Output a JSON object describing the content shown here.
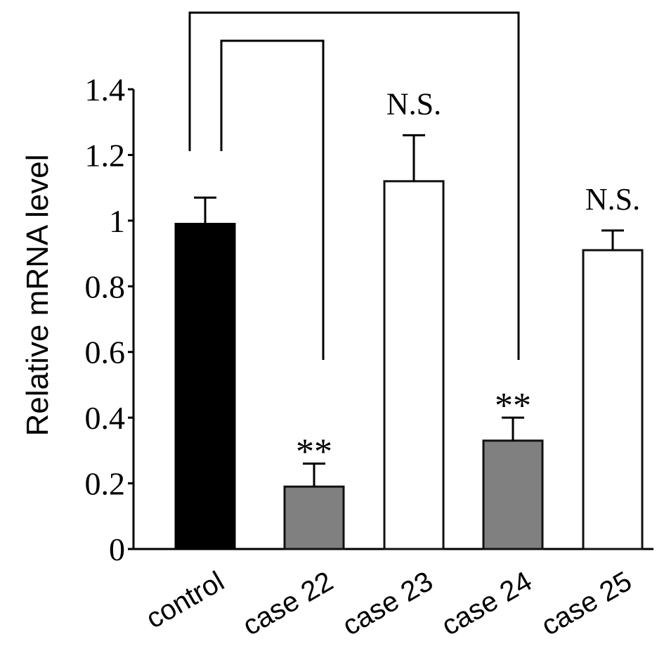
{
  "chart_data": {
    "type": "bar",
    "title": "",
    "xlabel": "",
    "ylabel": "Relative mRNA level",
    "ylim": [
      0,
      1.4
    ],
    "yticks": [
      0,
      0.2,
      0.4,
      0.6,
      0.8,
      1,
      1.2,
      1.4
    ],
    "ytick_labels": [
      "0",
      "0.2",
      "0.4",
      "0.6",
      "0.8",
      "1",
      "1.2",
      "1.4"
    ],
    "categories": [
      "control",
      "case 22",
      "case 23",
      "case 24",
      "case 25"
    ],
    "values": [
      0.99,
      0.19,
      1.12,
      0.33,
      0.91
    ],
    "errors": [
      0.08,
      0.07,
      0.14,
      0.07,
      0.06
    ],
    "fill_colors": [
      "#000000",
      "#808080",
      "#ffffff",
      "#808080",
      "#ffffff"
    ],
    "annotations": [
      "",
      "**",
      "N.S.",
      "**",
      "N.S."
    ],
    "grid": false,
    "comparisons": [
      {
        "from": "control",
        "to": "case 22"
      },
      {
        "from": "control",
        "to": "case 24"
      }
    ]
  }
}
